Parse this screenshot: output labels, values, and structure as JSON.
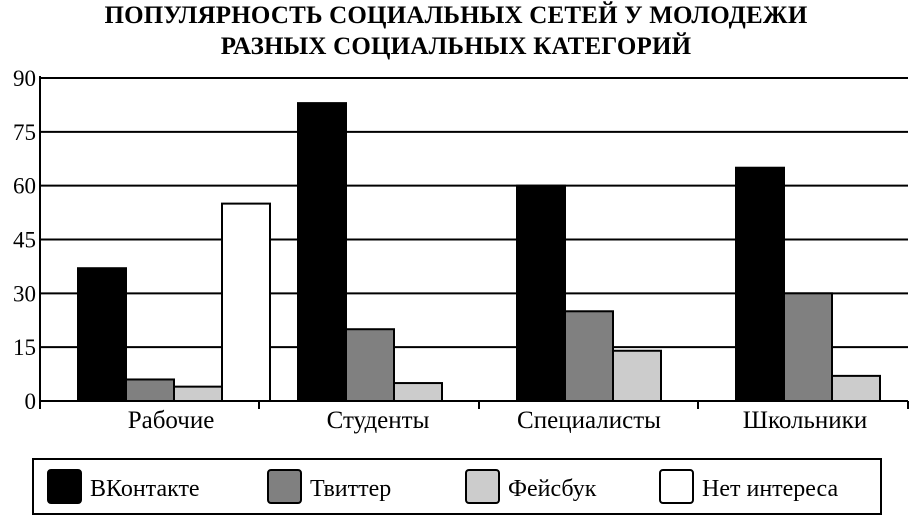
{
  "chart_data": {
    "type": "bar",
    "title": "ПОПУЛЯРНОСТЬ СОЦИАЛЬНЫХ СЕТЕЙ У МОЛОДЕЖИ РАЗНЫХ СОЦИАЛЬНЫХ КАТЕГОРИЙ",
    "title_lines": [
      "ПОПУЛЯРНОСТЬ СОЦИАЛЬНЫХ СЕТЕЙ У МОЛОДЕЖИ",
      "РАЗНЫХ СОЦИАЛЬНЫХ КАТЕГОРИЙ"
    ],
    "categories": [
      "Рабочие",
      "Студенты",
      "Специалисты",
      "Школьники"
    ],
    "series": [
      {
        "name": "ВКонтакте",
        "color": "#000000",
        "values": [
          37,
          83,
          60,
          65
        ]
      },
      {
        "name": "Твиттер",
        "color": "#808080",
        "values": [
          6,
          20,
          25,
          30
        ]
      },
      {
        "name": "Фейсбук",
        "color": "#cccccc",
        "values": [
          4,
          5,
          14,
          7
        ]
      },
      {
        "name": "Нет интереса",
        "color": "#ffffff",
        "values": [
          55,
          0,
          0,
          0
        ]
      }
    ],
    "yticks": [
      "0",
      "15",
      "30",
      "45",
      "60",
      "75",
      "90"
    ],
    "ylim": [
      0,
      90
    ],
    "grid": true,
    "legend_position": "bottom"
  }
}
